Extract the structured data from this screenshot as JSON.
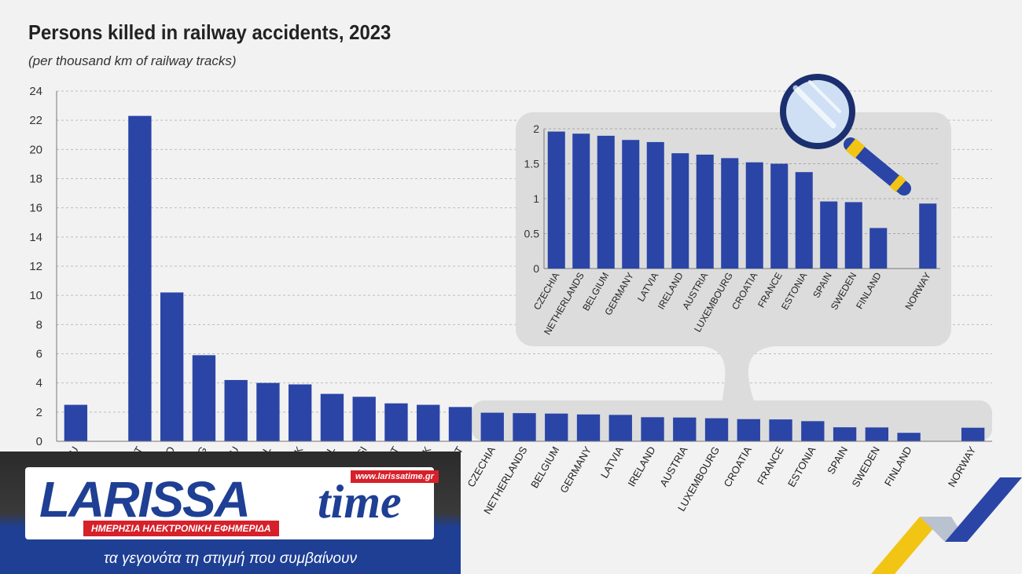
{
  "chart_data": {
    "type": "bar",
    "title": "Persons killed in railway accidents, 2023",
    "subtitle": "(per thousand km of railway tracks)",
    "xlabel": "",
    "ylabel": "",
    "ylim": [
      0,
      24
    ],
    "yticks": [
      0,
      2,
      4,
      6,
      8,
      10,
      12,
      14,
      16,
      18,
      20,
      22,
      24
    ],
    "grid": true,
    "color": "#2a45a6",
    "categories": [
      "EU",
      "",
      "LT",
      "RO",
      "BG",
      "HU",
      "PL",
      "SK",
      "EL",
      "SI",
      "PT",
      "DK",
      "IT",
      "CZECHIA",
      "NETHERLANDS",
      "BELGIUM",
      "GERMANY",
      "LATVIA",
      "IRELAND",
      "AUSTRIA",
      "LUXEMBOURG",
      "CROATIA",
      "FRANCE",
      "ESTONIA",
      "SPAIN",
      "SWEDEN",
      "FINLAND",
      "",
      "NORWAY"
    ],
    "values": [
      2.5,
      null,
      22.3,
      10.2,
      5.9,
      4.2,
      4.0,
      3.9,
      3.25,
      3.05,
      2.6,
      2.5,
      2.35,
      1.96,
      1.93,
      1.9,
      1.84,
      1.81,
      1.65,
      1.63,
      1.58,
      1.52,
      1.5,
      1.38,
      0.96,
      0.95,
      0.58,
      null,
      0.93
    ],
    "inset": {
      "ylim": [
        0,
        2
      ],
      "yticks": [
        "0",
        "0.5",
        "1",
        "1.5",
        "2"
      ],
      "categories": [
        "CZECHIA",
        "NETHERLANDS",
        "BELGIUM",
        "GERMANY",
        "LATVIA",
        "IRELAND",
        "AUSTRIA",
        "LUXEMBOURG",
        "CROATIA",
        "FRANCE",
        "ESTONIA",
        "SPAIN",
        "SWEDEN",
        "FINLAND",
        "",
        "NORWAY"
      ],
      "values": [
        1.96,
        1.93,
        1.9,
        1.84,
        1.81,
        1.65,
        1.63,
        1.58,
        1.52,
        1.5,
        1.38,
        0.96,
        0.95,
        0.58,
        null,
        0.93
      ]
    }
  },
  "logo": {
    "name": "LARISSA",
    "name_suffix": "time",
    "url": "www.larissatime.gr",
    "tagline": "ΗΜΕΡΗΣΙΑ ΗΛΕΚΤΡΟΝΙΚΗ ΕΦΗΜΕΡΙΔΑ",
    "slogan": "τα γεγονότα τη στιγμή που συμβαίνουν",
    "colors": {
      "blue": "#1e3f94",
      "red": "#d6202a",
      "yellow": "#f2c514"
    }
  }
}
